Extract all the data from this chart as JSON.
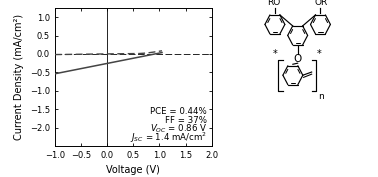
{
  "xlim": [
    -1.0,
    2.0
  ],
  "ylim": [
    -2.5,
    1.25
  ],
  "xlabel": "Voltage (V)",
  "ylabel": "Current Density (mA/cm²)",
  "xticks": [
    -1.0,
    -0.5,
    0.0,
    0.5,
    1.0,
    1.5,
    2.0
  ],
  "yticks": [
    -2.0,
    -1.5,
    -1.0,
    -0.5,
    0.0,
    0.5,
    1.0
  ],
  "curve_color": "#444444",
  "dark_curve_color": "#444444",
  "bg_color": "#ffffff",
  "font_size": 7,
  "ann_text_lines": [
    "PCE = 0.44%",
    "FF = 37%",
    "V_OC = 0.86 V",
    "J_SC = 1.4 mA/cm^2"
  ]
}
